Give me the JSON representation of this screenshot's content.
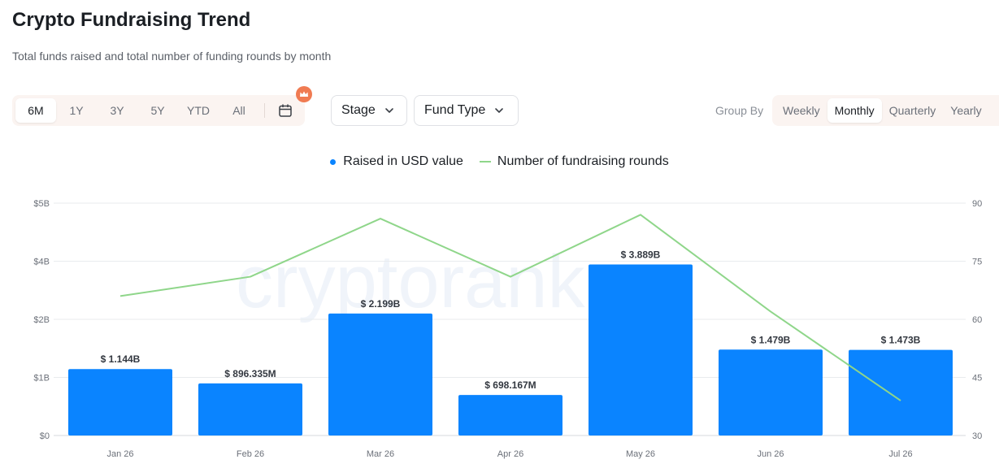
{
  "header": {
    "title": "Crypto Fundraising Trend",
    "subtitle": "Total funds raised and total number of funding rounds by month"
  },
  "time_range": {
    "options": [
      "6M",
      "1Y",
      "3Y",
      "5Y",
      "YTD",
      "All"
    ],
    "selected": "6M"
  },
  "filters": {
    "stage_label": "Stage",
    "fund_type_label": "Fund Type"
  },
  "group_by": {
    "label": "Group By",
    "options": [
      "Weekly",
      "Monthly",
      "Quarterly",
      "Yearly"
    ],
    "selected": "Monthly"
  },
  "legend": {
    "bars": "Raised in USD value",
    "line": "Number of fundraising rounds"
  },
  "watermark": "cryptorank",
  "colors": {
    "bar": "#0a84ff",
    "line": "#8fd68a",
    "accent": "#f07b52"
  },
  "chart_data": {
    "type": "bar",
    "categories": [
      "Jan 26",
      "Feb 26",
      "Mar 26",
      "Apr 26",
      "May 26",
      "Jun 26",
      "Jul 26"
    ],
    "series": [
      {
        "name": "Raised in USD value",
        "type": "bar",
        "axis": "left",
        "values": [
          1144000000,
          896335000,
          2199000000,
          698167000,
          3889000000,
          1479000000,
          1473000000
        ],
        "labels": [
          "$ 1.144B",
          "$ 896.335M",
          "$ 2.199B",
          "$ 698.167M",
          "$ 3.889B",
          "$ 1.479B",
          "$ 1.473B"
        ]
      },
      {
        "name": "Number of fundraising rounds",
        "type": "line",
        "axis": "right",
        "values": [
          66,
          71,
          86,
          71,
          87,
          62,
          39
        ]
      }
    ],
    "y_left": {
      "ticks": [
        "$0",
        "$1B",
        "$2B",
        "$4B",
        "$5B"
      ],
      "ylim": [
        0,
        5000000000
      ]
    },
    "y_right": {
      "ticks": [
        "30",
        "45",
        "60",
        "75",
        "90"
      ],
      "ylim": [
        30,
        90
      ]
    },
    "grid": true,
    "legend_position": "top-center"
  }
}
